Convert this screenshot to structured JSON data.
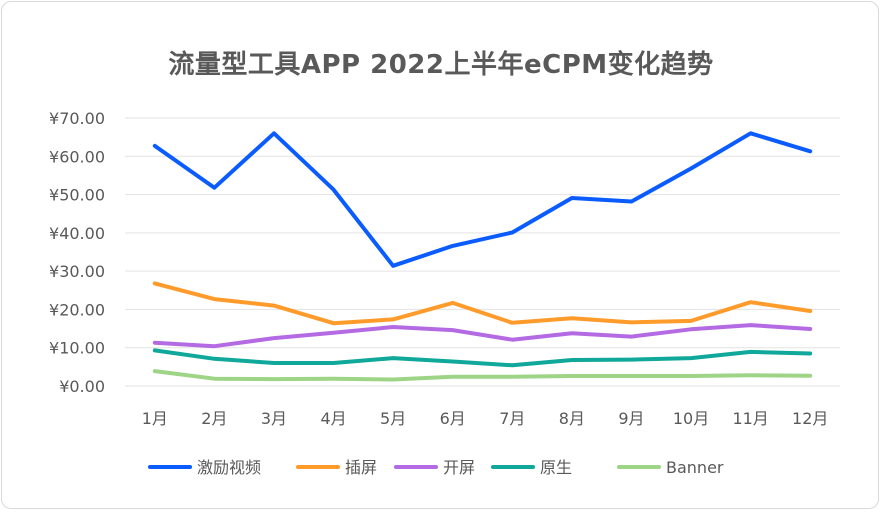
{
  "chart_data": {
    "type": "line",
    "title": "流量型工具APP 2022上半年eCPM变化趋势",
    "xlabel": "",
    "ylabel": "",
    "categories": [
      "1月",
      "2月",
      "3月",
      "4月",
      "5月",
      "6月",
      "7月",
      "8月",
      "9月",
      "10月",
      "11月",
      "12月"
    ],
    "ylim": [
      0,
      70
    ],
    "yticks": [
      0,
      10,
      20,
      30,
      40,
      50,
      60,
      70
    ],
    "ytick_labels": [
      "¥0.00",
      "¥10.00",
      "¥20.00",
      "¥30.00",
      "¥40.00",
      "¥50.00",
      "¥60.00",
      "¥70.00"
    ],
    "grid": true,
    "legend_position": "bottom",
    "series": [
      {
        "name": "激励视频",
        "color": "#0b5cff",
        "values": [
          62.7,
          51.8,
          66.0,
          51.3,
          31.4,
          36.6,
          40.1,
          49.1,
          48.2,
          56.8,
          66.0,
          61.3
        ]
      },
      {
        "name": "插屏",
        "color": "#ff9b2b",
        "values": [
          26.8,
          22.7,
          21.0,
          16.4,
          17.4,
          21.7,
          16.5,
          17.7,
          16.6,
          17.0,
          21.9,
          19.6
        ]
      },
      {
        "name": "开屏",
        "color": "#b36ae2",
        "values": [
          11.3,
          10.4,
          12.5,
          13.9,
          15.4,
          14.6,
          12.1,
          13.8,
          12.9,
          14.8,
          15.9,
          14.9
        ]
      },
      {
        "name": "原生",
        "color": "#0fa89a",
        "values": [
          9.3,
          7.1,
          6.0,
          6.0,
          7.3,
          6.4,
          5.4,
          6.8,
          6.9,
          7.3,
          8.9,
          8.5
        ]
      },
      {
        "name": "Banner",
        "color": "#9ed486",
        "values": [
          3.9,
          1.9,
          1.8,
          1.9,
          1.7,
          2.4,
          2.4,
          2.6,
          2.6,
          2.6,
          2.8,
          2.7
        ]
      }
    ]
  }
}
